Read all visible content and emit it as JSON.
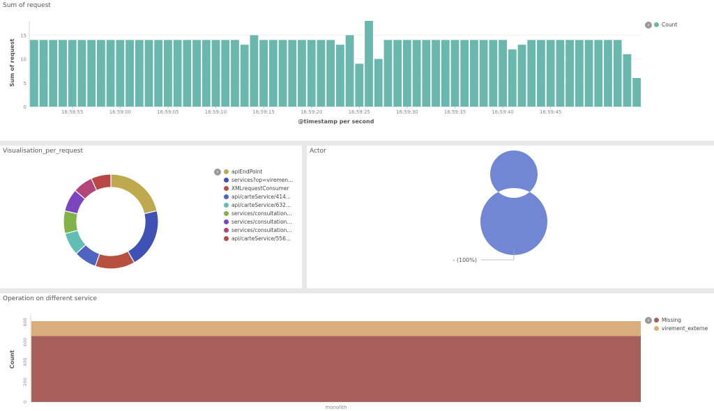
{
  "panels": {
    "requests_title": "Sum of request",
    "pie_title": "Visualisation_per_request",
    "actor_title": "Actor",
    "ops_title": "Operation on different service"
  },
  "chart_data": [
    {
      "type": "bar",
      "title": "Sum of request",
      "xlabel": "@timestamp per second",
      "ylabel": "Sum of request",
      "ylim": [
        0,
        18
      ],
      "yticks": [
        0,
        5,
        10,
        15
      ],
      "xtick_labels": [
        "16:58:55",
        "16:59:00",
        "16:59:05",
        "16:59:10",
        "16:59:15",
        "16:59:20",
        "16:59:25",
        "16:59:30",
        "16:59:35",
        "16:59:40",
        "16:59:45"
      ],
      "series": [
        {
          "name": "Count",
          "color": "#6ab7ad",
          "values": [
            14,
            14,
            14,
            14,
            14,
            14,
            14,
            14,
            14,
            14,
            14,
            14,
            14,
            14,
            14,
            14,
            14,
            14,
            14,
            14,
            14,
            14,
            13,
            15,
            14,
            14,
            14,
            14,
            14,
            14,
            14,
            14,
            13,
            15,
            9,
            18,
            10,
            14,
            14,
            14,
            14,
            14,
            14,
            14,
            14,
            14,
            14,
            14,
            14,
            14,
            12,
            13,
            14,
            14,
            14,
            14,
            14,
            14,
            14,
            14,
            14,
            14,
            11,
            6
          ]
        }
      ],
      "grid": true,
      "legend_position": "right"
    },
    {
      "type": "pie",
      "title": "Visualisation_per_request",
      "donut": true,
      "legend_position": "right",
      "slices": [
        {
          "label": "apiEndPoint",
          "value": 22,
          "color": "#bfa94e"
        },
        {
          "label": "services?op=viremen...",
          "value": 21,
          "color": "#4051b5"
        },
        {
          "label": "XMLrequestConsumer",
          "value": 14,
          "color": "#b5503f"
        },
        {
          "label": "api/carteService/414...",
          "value": 8,
          "color": "#4e64c0"
        },
        {
          "label": "api/carteService/632...",
          "value": 8,
          "color": "#62beb3"
        },
        {
          "label": "services/consultation...",
          "value": 8,
          "color": "#82b34a"
        },
        {
          "label": "services/consultation...",
          "value": 8,
          "color": "#7a45bf"
        },
        {
          "label": "services/consultation...",
          "value": 7,
          "color": "#b2457a"
        },
        {
          "label": "api/carteService/556...",
          "value": 7,
          "color": "#b84848"
        }
      ]
    },
    {
      "type": "pie",
      "title": "Actor",
      "donut": true,
      "slices": [
        {
          "label": "- (100%)",
          "value": 100,
          "color": "#7187d4"
        }
      ]
    },
    {
      "type": "bar",
      "title": "Operation on different service",
      "stacked": true,
      "categories": [
        "monolith"
      ],
      "ylabel": "Count",
      "ylim": [
        0,
        880
      ],
      "yticks": [
        0,
        200,
        400,
        600,
        800
      ],
      "series": [
        {
          "name": "Missing",
          "values": [
            660
          ],
          "color": "#a75f5b"
        },
        {
          "name": "virement_externe",
          "values": [
            150
          ],
          "color": "#d9ae7c"
        }
      ],
      "legend_position": "right"
    }
  ]
}
